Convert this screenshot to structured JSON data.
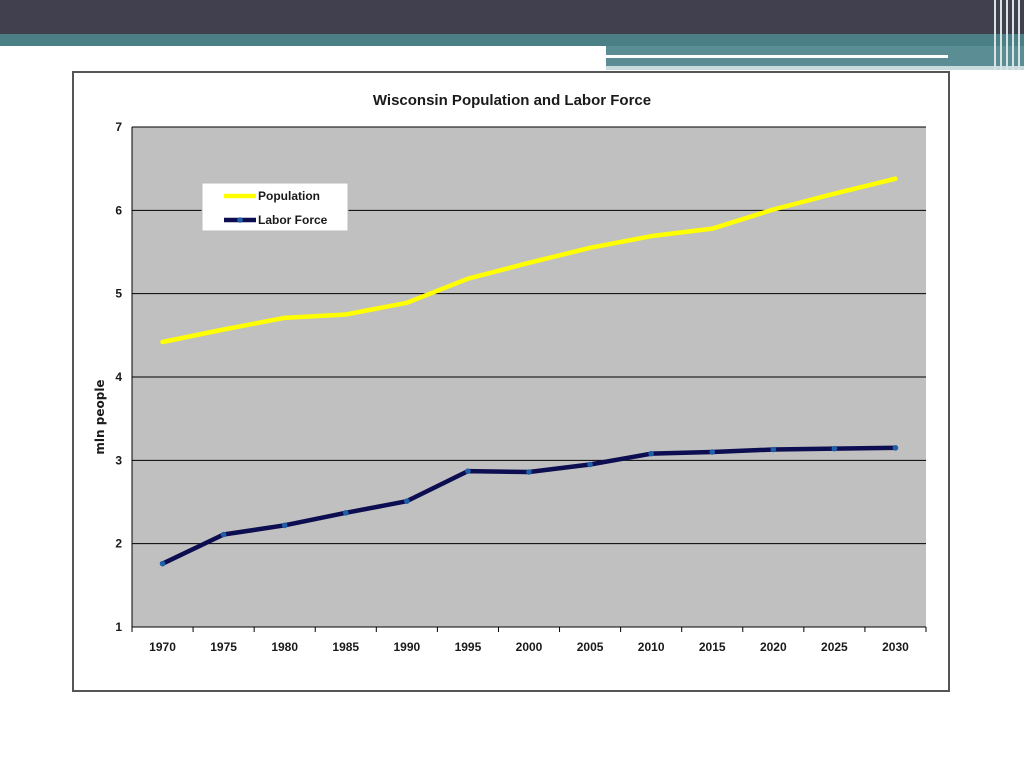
{
  "chart_data": {
    "type": "line",
    "title": "Wisconsin Population and Labor Force",
    "ylabel": "mln people",
    "xlabel": "",
    "ylim": [
      1,
      7
    ],
    "yticks": [
      "1",
      "2",
      "3",
      "4",
      "5",
      "6",
      "7"
    ],
    "categories": [
      "1970",
      "1975",
      "1980",
      "1985",
      "1990",
      "1995",
      "2000",
      "2005",
      "2010",
      "2015",
      "2020",
      "2025",
      "2030"
    ],
    "grid": true,
    "legend_position": "upper-left",
    "series": [
      {
        "name": "Population",
        "color": "#ffff00",
        "marker": false,
        "values": [
          4.42,
          4.57,
          4.71,
          4.75,
          4.89,
          5.18,
          5.37,
          5.55,
          5.69,
          5.78,
          6.01,
          6.2,
          6.38
        ]
      },
      {
        "name": "Labor Force",
        "color": "#0d0d52",
        "marker": true,
        "values": [
          1.76,
          2.11,
          2.22,
          2.37,
          2.51,
          2.87,
          2.86,
          2.95,
          3.08,
          3.1,
          3.13,
          3.14,
          3.15
        ]
      }
    ]
  },
  "colors": {
    "plot_background": "#c0c0c0",
    "grid": "#000000",
    "marker": "#1f5fa8"
  }
}
